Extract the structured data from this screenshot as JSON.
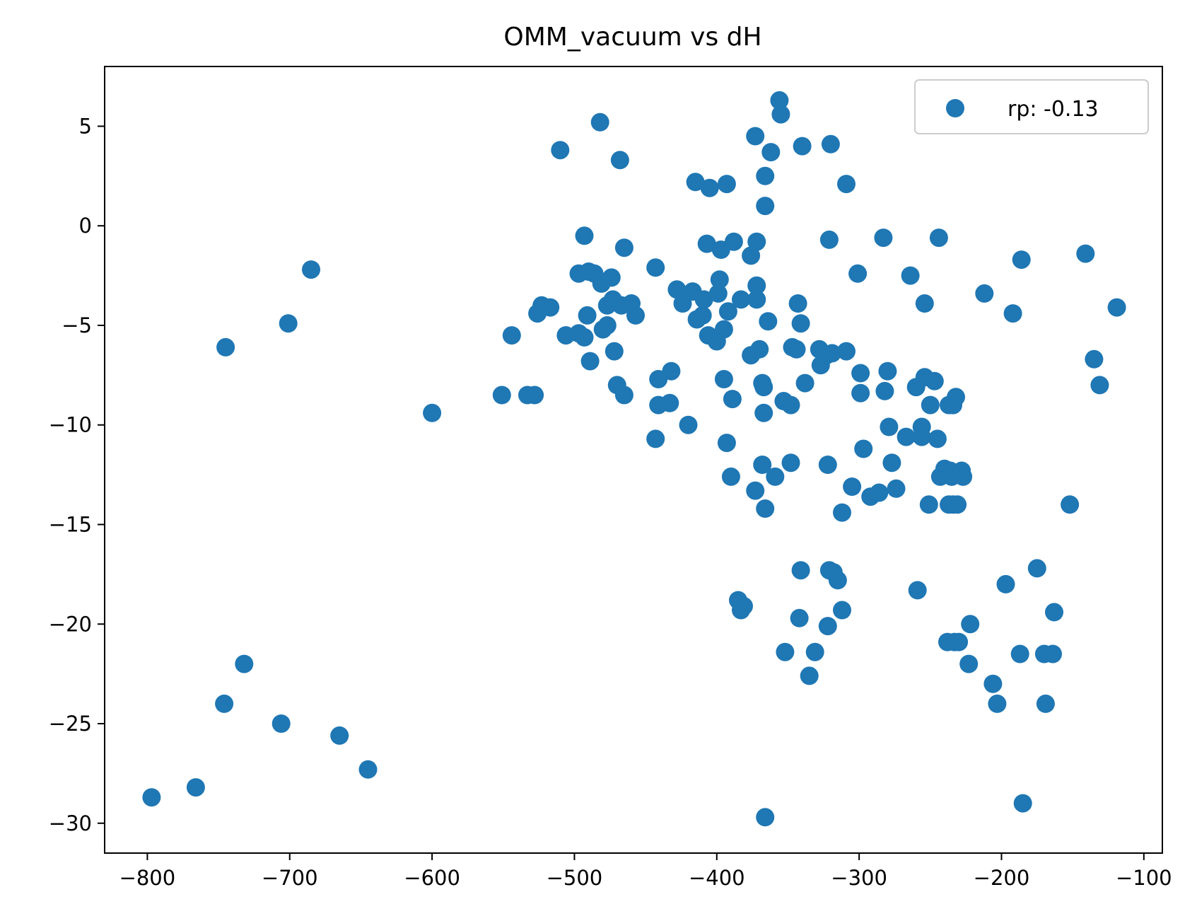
{
  "chart_data": {
    "type": "scatter",
    "title": "OMM_vacuum vs dH",
    "xlabel": "",
    "ylabel": "",
    "xlim": [
      -830,
      -87
    ],
    "ylim": [
      -31.5,
      8.0
    ],
    "x_ticks": [
      -800,
      -700,
      -600,
      -500,
      -400,
      -300,
      -200,
      -100
    ],
    "y_ticks": [
      5,
      0,
      -5,
      -10,
      -15,
      -20,
      -25,
      -30
    ],
    "x_tick_labels": [
      "−800",
      "−700",
      "−600",
      "−500",
      "−400",
      "−300",
      "−200",
      "−100"
    ],
    "y_tick_labels": [
      "5",
      "0",
      "−5",
      "−10",
      "−15",
      "−20",
      "−25",
      "−30"
    ],
    "grid": false,
    "legend_position": "upper-right",
    "colors": {
      "points": "#1f77b4"
    },
    "series": [
      {
        "name": "rp: -0.13",
        "points": [
          [
            -797,
            -28.7
          ],
          [
            -766,
            -28.2
          ],
          [
            -746,
            -24.0
          ],
          [
            -745,
            -6.1
          ],
          [
            -732,
            -22.0
          ],
          [
            -706,
            -25.0
          ],
          [
            -701,
            -4.9
          ],
          [
            -685,
            -2.2
          ],
          [
            -665,
            -25.6
          ],
          [
            -645,
            -27.3
          ],
          [
            -600,
            -9.4
          ],
          [
            -551,
            -8.5
          ],
          [
            -544,
            -5.5
          ],
          [
            -533,
            -8.5
          ],
          [
            -528,
            -8.5
          ],
          [
            -526,
            -4.4
          ],
          [
            -523,
            -4.0
          ],
          [
            -517,
            -4.1
          ],
          [
            -510,
            3.8
          ],
          [
            -506,
            -5.5
          ],
          [
            -497,
            -5.4
          ],
          [
            -497,
            -2.4
          ],
          [
            -493,
            -5.6
          ],
          [
            -493,
            -0.5
          ],
          [
            -491,
            -4.5
          ],
          [
            -490,
            -2.3
          ],
          [
            -489,
            -6.8
          ],
          [
            -486,
            -2.4
          ],
          [
            -482,
            5.2
          ],
          [
            -481,
            -2.9
          ],
          [
            -480,
            -5.2
          ],
          [
            -477,
            -5.0
          ],
          [
            -477,
            -4.0
          ],
          [
            -474,
            -2.6
          ],
          [
            -473,
            -3.7
          ],
          [
            -472,
            -6.3
          ],
          [
            -470,
            -8.0
          ],
          [
            -468,
            3.3
          ],
          [
            -467,
            -4.0
          ],
          [
            -465,
            -8.5
          ],
          [
            -465,
            -1.1
          ],
          [
            -460,
            -3.9
          ],
          [
            -457,
            -4.5
          ],
          [
            -443,
            -2.1
          ],
          [
            -443,
            -10.7
          ],
          [
            -441,
            -7.7
          ],
          [
            -441,
            -9.0
          ],
          [
            -433,
            -8.9
          ],
          [
            -432,
            -7.3
          ],
          [
            -428,
            -3.2
          ],
          [
            -424,
            -3.9
          ],
          [
            -420,
            -10.0
          ],
          [
            -417,
            -3.3
          ],
          [
            -415,
            2.2
          ],
          [
            -414,
            -4.7
          ],
          [
            -410,
            -4.5
          ],
          [
            -409,
            -3.7
          ],
          [
            -407,
            -0.9
          ],
          [
            -406,
            -5.5
          ],
          [
            -405,
            1.9
          ],
          [
            -400,
            -5.8
          ],
          [
            -399,
            -3.4
          ],
          [
            -398,
            -2.7
          ],
          [
            -397,
            -1.2
          ],
          [
            -395,
            -7.7
          ],
          [
            -395,
            -5.2
          ],
          [
            -393,
            2.1
          ],
          [
            -393,
            -10.9
          ],
          [
            -392,
            -4.3
          ],
          [
            -390,
            -12.6
          ],
          [
            -389,
            -8.7
          ],
          [
            -388,
            -0.8
          ],
          [
            -385,
            -18.8
          ],
          [
            -383,
            -19.3
          ],
          [
            -383,
            -3.7
          ],
          [
            -381,
            -19.1
          ],
          [
            -376,
            -1.5
          ],
          [
            -376,
            -6.5
          ],
          [
            -373,
            -13.3
          ],
          [
            -373,
            4.5
          ],
          [
            -372,
            -0.8
          ],
          [
            -372,
            -3.0
          ],
          [
            -372,
            -3.7
          ],
          [
            -370,
            -6.2
          ],
          [
            -368,
            -12.0
          ],
          [
            -368,
            -7.9
          ],
          [
            -367,
            -9.4
          ],
          [
            -367,
            -8.1
          ],
          [
            -366,
            2.5
          ],
          [
            -366,
            1.0
          ],
          [
            -366,
            -29.7
          ],
          [
            -366,
            -14.2
          ],
          [
            -364,
            -4.8
          ],
          [
            -362,
            3.7
          ],
          [
            -359,
            -12.6
          ],
          [
            -356,
            6.3
          ],
          [
            -355,
            5.6
          ],
          [
            -353,
            -8.8
          ],
          [
            -352,
            -21.4
          ],
          [
            -348,
            -9.0
          ],
          [
            -348,
            -11.9
          ],
          [
            -347,
            -6.1
          ],
          [
            -344,
            -6.2
          ],
          [
            -343,
            -3.9
          ],
          [
            -342,
            -19.7
          ],
          [
            -341,
            -4.9
          ],
          [
            -341,
            -17.3
          ],
          [
            -340,
            4.0
          ],
          [
            -338,
            -7.9
          ],
          [
            -335,
            -22.6
          ],
          [
            -331,
            -21.4
          ],
          [
            -328,
            -6.2
          ],
          [
            -327,
            -7.0
          ],
          [
            -323,
            -6.5
          ],
          [
            -322,
            -20.1
          ],
          [
            -322,
            -12.0
          ],
          [
            -321,
            -17.3
          ],
          [
            -321,
            -0.7
          ],
          [
            -320,
            4.1
          ],
          [
            -319,
            -6.4
          ],
          [
            -318,
            -17.4
          ],
          [
            -315,
            -17.8
          ],
          [
            -312,
            -14.4
          ],
          [
            -312,
            -19.3
          ],
          [
            -309,
            -6.3
          ],
          [
            -309,
            2.1
          ],
          [
            -305,
            -13.1
          ],
          [
            -301,
            -2.4
          ],
          [
            -299,
            -8.4
          ],
          [
            -299,
            -7.4
          ],
          [
            -297,
            -11.2
          ],
          [
            -292,
            -13.6
          ],
          [
            -286,
            -13.4
          ],
          [
            -283,
            -0.6
          ],
          [
            -282,
            -8.3
          ],
          [
            -280,
            -7.3
          ],
          [
            -279,
            -10.1
          ],
          [
            -277,
            -11.9
          ],
          [
            -274,
            -13.2
          ],
          [
            -267,
            -10.6
          ],
          [
            -264,
            -2.5
          ],
          [
            -260,
            -8.1
          ],
          [
            -259,
            -18.3
          ],
          [
            -256,
            -10.1
          ],
          [
            -256,
            -10.6
          ],
          [
            -254,
            -3.9
          ],
          [
            -254,
            -7.6
          ],
          [
            -251,
            -14.0
          ],
          [
            -250,
            -9.0
          ],
          [
            -247,
            -7.8
          ],
          [
            -245,
            -10.7
          ],
          [
            -244,
            -0.6
          ],
          [
            -243,
            -12.6
          ],
          [
            -240,
            -12.2
          ],
          [
            -238,
            -20.9
          ],
          [
            -237,
            -9.0
          ],
          [
            -237,
            -14.0
          ],
          [
            -236,
            -12.3
          ],
          [
            -235,
            -12.6
          ],
          [
            -234,
            -9.0
          ],
          [
            -234,
            -14.0
          ],
          [
            -233,
            -20.9
          ],
          [
            -232,
            -8.6
          ],
          [
            -231,
            -14.0
          ],
          [
            -230,
            -20.9
          ],
          [
            -228,
            -12.3
          ],
          [
            -227,
            -12.6
          ],
          [
            -223,
            -22.0
          ],
          [
            -222,
            -20.0
          ],
          [
            -212,
            -3.4
          ],
          [
            -206,
            -23.0
          ],
          [
            -203,
            -24.0
          ],
          [
            -197,
            -18.0
          ],
          [
            -192,
            -4.4
          ],
          [
            -187,
            -21.5
          ],
          [
            -186,
            -1.7
          ],
          [
            -185,
            -29.0
          ],
          [
            -175,
            -17.2
          ],
          [
            -170,
            -21.5
          ],
          [
            -169,
            -24.0
          ],
          [
            -164,
            -21.5
          ],
          [
            -163,
            -19.4
          ],
          [
            -152,
            -14.0
          ],
          [
            -141,
            -1.4
          ],
          [
            -135,
            -6.7
          ],
          [
            -131,
            -8.0
          ],
          [
            -119,
            -4.1
          ]
        ]
      }
    ]
  }
}
